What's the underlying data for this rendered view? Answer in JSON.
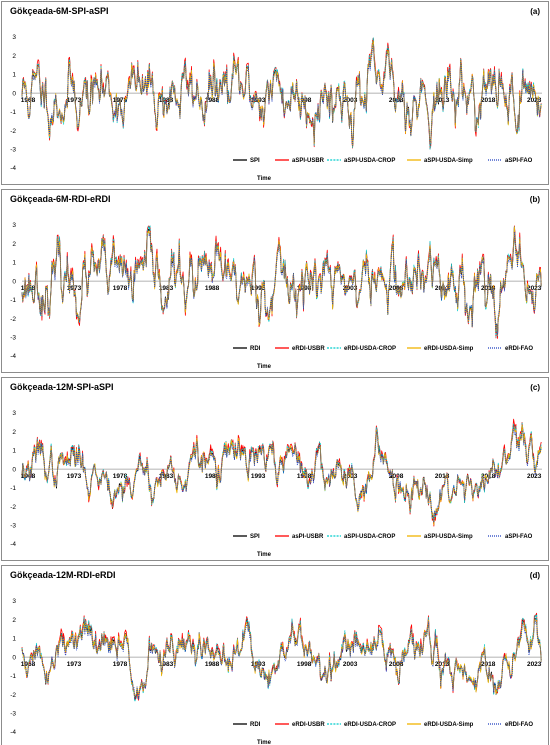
{
  "chart_data": [
    {
      "type": "line",
      "panel_label": "(a)",
      "title": "Gökçeada-6M-SPI-aSPI",
      "xlabel": "Time",
      "ylabel": "",
      "ylim": [
        -4,
        3
      ],
      "yticks": [
        -4,
        -3,
        -2,
        -1,
        0,
        1,
        2,
        3
      ],
      "xticks": [
        "1968",
        "1973",
        "1978",
        "1983",
        "1988",
        "1993",
        "1998",
        "2003",
        "2008",
        "2013",
        "2018",
        "2023"
      ],
      "xrange": [
        1968,
        2024.5
      ],
      "grid": false,
      "legend_position": "bottom-right",
      "series": [
        {
          "name": "SPI",
          "color": "#000000",
          "style": "solid"
        },
        {
          "name": "aSPI-USBR",
          "color": "#ff0000",
          "style": "solid"
        },
        {
          "name": "aSPI-USDA-CROP",
          "color": "#00cccc",
          "style": "dashed"
        },
        {
          "name": "aSPI-USDA-Simp",
          "color": "#f0b400",
          "style": "solid"
        },
        {
          "name": "aSPI-FAO",
          "color": "#1f3fbf",
          "style": "dotted"
        }
      ],
      "seed": 11,
      "scale": 6
    },
    {
      "type": "line",
      "panel_label": "(b)",
      "title": "Gökçeada-6M-RDI-eRDI",
      "xlabel": "Time",
      "ylabel": "",
      "ylim": [
        -4,
        3
      ],
      "yticks": [
        -4,
        -3,
        -2,
        -1,
        0,
        1,
        2,
        3
      ],
      "xticks": [
        "1968",
        "1973",
        "1978",
        "1983",
        "1988",
        "1993",
        "1998",
        "2003",
        "2008",
        "2013",
        "2018",
        "2023"
      ],
      "xrange": [
        1968,
        2024.5
      ],
      "grid": false,
      "legend_position": "bottom-right",
      "series": [
        {
          "name": "RDI",
          "color": "#000000",
          "style": "solid"
        },
        {
          "name": "eRDI-USBR",
          "color": "#ff0000",
          "style": "solid"
        },
        {
          "name": "eRDI-USDA-CROP",
          "color": "#00cccc",
          "style": "dashed"
        },
        {
          "name": "eRDI-USDA-Simp",
          "color": "#f0b400",
          "style": "solid"
        },
        {
          "name": "eRDI-FAO",
          "color": "#1f3fbf",
          "style": "dotted"
        }
      ],
      "seed": 23,
      "scale": 6
    },
    {
      "type": "line",
      "panel_label": "(c)",
      "title": "Gökçeada-12M-SPI-aSPI",
      "xlabel": "Time",
      "ylabel": "",
      "ylim": [
        -4,
        3
      ],
      "yticks": [
        -4,
        -3,
        -2,
        -1,
        0,
        1,
        2,
        3
      ],
      "xticks": [
        "1968",
        "1973",
        "1978",
        "1983",
        "1988",
        "1993",
        "1998",
        "2003",
        "2008",
        "2013",
        "2018",
        "2023"
      ],
      "xrange": [
        1968,
        2024.5
      ],
      "grid": false,
      "legend_position": "bottom-right",
      "series": [
        {
          "name": "SPI",
          "color": "#000000",
          "style": "solid"
        },
        {
          "name": "asPI-USBR",
          "color": "#ff0000",
          "style": "solid"
        },
        {
          "name": "aSPI-USDA-CROP",
          "color": "#00cccc",
          "style": "dashed"
        },
        {
          "name": "aSPI-USDA-Simp",
          "color": "#f0b400",
          "style": "solid"
        },
        {
          "name": "aSPI-FAO",
          "color": "#1f3fbf",
          "style": "dotted"
        }
      ],
      "seed": 37,
      "scale": 12
    },
    {
      "type": "line",
      "panel_label": "(d)",
      "title": "Gökçeada-12M-RDI-eRDI",
      "xlabel": "Time",
      "ylabel": "",
      "ylim": [
        -4,
        3
      ],
      "yticks": [
        -4,
        -3,
        -2,
        -1,
        0,
        1,
        2,
        3
      ],
      "xticks": [
        "1968",
        "1973",
        "1978",
        "1983",
        "1988",
        "1993",
        "1998",
        "2003",
        "2008",
        "2013",
        "2018",
        "2023"
      ],
      "xrange": [
        1968,
        2024.5
      ],
      "grid": false,
      "legend_position": "bottom-right",
      "series": [
        {
          "name": "RDI",
          "color": "#000000",
          "style": "solid"
        },
        {
          "name": "eRDI-USBR",
          "color": "#ff0000",
          "style": "solid"
        },
        {
          "name": "eRDI-USDA-CROP",
          "color": "#00cccc",
          "style": "dashed"
        },
        {
          "name": "eRDI-USDA-Simp",
          "color": "#f0b400",
          "style": "solid"
        },
        {
          "name": "eRDI-FAO",
          "color": "#1f3fbf",
          "style": "dotted"
        }
      ],
      "seed": 51,
      "scale": 12
    }
  ]
}
